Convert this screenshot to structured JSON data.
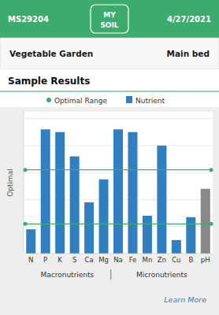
{
  "page": {
    "header_color": "#3daa6e",
    "header_id": "MS29204",
    "header_date": "4/27/2021",
    "logo": [
      "MY",
      "SOIL"
    ],
    "garden_name": "Vegetable Garden",
    "bed_name": "Main bed",
    "section_title": "Sample Results",
    "learn_more": "Learn More"
  },
  "chart_data": {
    "type": "bar",
    "categories": [
      "N",
      "P",
      "K",
      "S",
      "Ca",
      "Mg",
      "Na",
      "Fe",
      "Mn",
      "Zn",
      "Cu",
      "B",
      "pH"
    ],
    "series": [
      {
        "name": "Nutrient",
        "colors": [
          "#2f7fc1",
          "#2f7fc1",
          "#2f7fc1",
          "#2f7fc1",
          "#2f7fc1",
          "#2f7fc1",
          "#2f7fc1",
          "#2f7fc1",
          "#2f7fc1",
          "#2f7fc1",
          "#2f7fc1",
          "#2f7fc1",
          "#888888"
        ],
        "values": [
          0.18,
          0.92,
          0.9,
          0.72,
          0.38,
          0.55,
          0.92,
          0.9,
          0.28,
          0.8,
          0.1,
          0.27,
          0.48
        ]
      }
    ],
    "optimal_range": {
      "name": "Optimal Range",
      "color": "#3daa6e",
      "values": [
        0.22,
        0.62
      ]
    },
    "y_label": "Optimal",
    "ylim": [
      0,
      1.05
    ],
    "yticks": [
      0.2,
      0.4,
      0.6,
      0.8,
      1.0
    ],
    "grid": true,
    "tick_labels": "x",
    "legend": "top",
    "groups": [
      {
        "label": "Macronutrients",
        "indices": [
          0,
          1,
          2,
          3,
          4,
          5
        ]
      },
      {
        "label": "Micronutrients",
        "indices": [
          6,
          7,
          8,
          9,
          10,
          11,
          12
        ]
      }
    ]
  }
}
